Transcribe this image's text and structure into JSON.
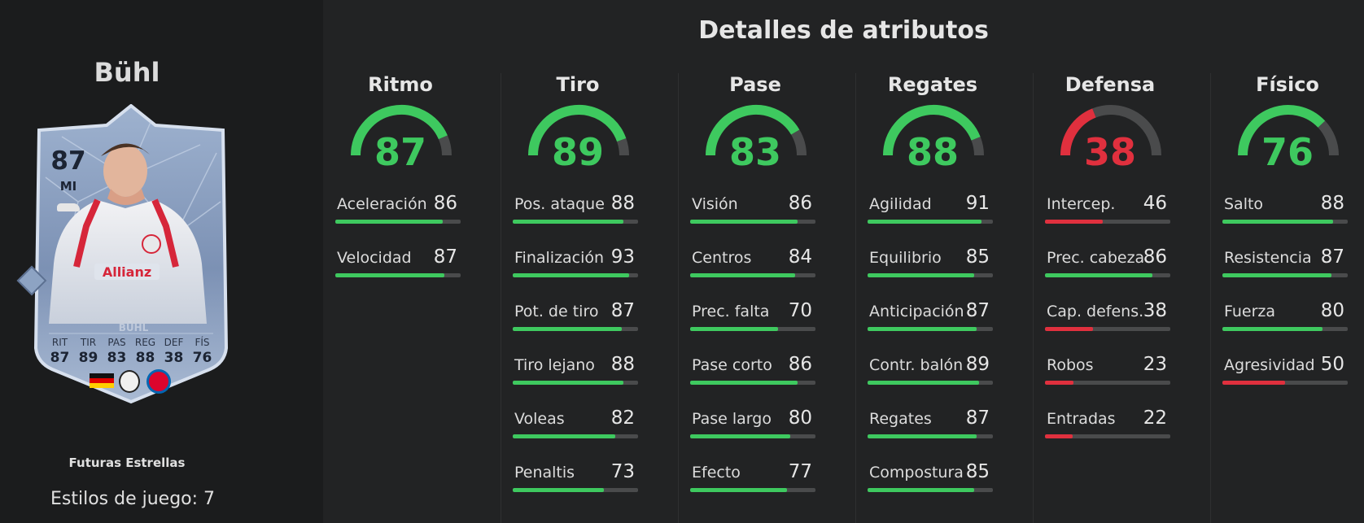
{
  "player": {
    "name": "Bühl",
    "card": {
      "rating": "87",
      "position": "MI",
      "name_on_card": "BÜHL",
      "stat_labels": [
        "RIT",
        "TIR",
        "PAS",
        "REG",
        "DEF",
        "FÍS"
      ],
      "stat_values": [
        "87",
        "89",
        "83",
        "88",
        "38",
        "76"
      ]
    },
    "edition": "Futuras Estrellas",
    "playstyles": "Estilos de juego: 7"
  },
  "title": "Detalles de atributos",
  "colors": {
    "high": "#3ec95f",
    "medium": "#e3b23c",
    "low": "#e0303e",
    "track": "#4a4b4c"
  },
  "categories": [
    {
      "name": "Ritmo",
      "value": 87,
      "stats": [
        {
          "label": "Aceleración",
          "value": 86
        },
        {
          "label": "Velocidad",
          "value": 87
        }
      ]
    },
    {
      "name": "Tiro",
      "value": 89,
      "stats": [
        {
          "label": "Pos. ataque",
          "value": 88
        },
        {
          "label": "Finalización",
          "value": 93
        },
        {
          "label": "Pot. de tiro",
          "value": 87
        },
        {
          "label": "Tiro lejano",
          "value": 88
        },
        {
          "label": "Voleas",
          "value": 82
        },
        {
          "label": "Penaltis",
          "value": 73
        }
      ]
    },
    {
      "name": "Pase",
      "value": 83,
      "stats": [
        {
          "label": "Visión",
          "value": 86
        },
        {
          "label": "Centros",
          "value": 84
        },
        {
          "label": "Prec. falta",
          "value": 70
        },
        {
          "label": "Pase corto",
          "value": 86
        },
        {
          "label": "Pase largo",
          "value": 80
        },
        {
          "label": "Efecto",
          "value": 77
        }
      ]
    },
    {
      "name": "Regates",
      "value": 88,
      "stats": [
        {
          "label": "Agilidad",
          "value": 91
        },
        {
          "label": "Equilibrio",
          "value": 85
        },
        {
          "label": "Anticipación",
          "value": 87
        },
        {
          "label": "Contr. balón",
          "value": 89
        },
        {
          "label": "Regates",
          "value": 87
        },
        {
          "label": "Compostura",
          "value": 85
        }
      ]
    },
    {
      "name": "Defensa",
      "value": 38,
      "stats": [
        {
          "label": "Intercep.",
          "value": 46
        },
        {
          "label": "Prec. cabeza",
          "value": 86
        },
        {
          "label": "Cap. defens.",
          "value": 38
        },
        {
          "label": "Robos",
          "value": 23
        },
        {
          "label": "Entradas",
          "value": 22
        }
      ]
    },
    {
      "name": "Físico",
      "value": 76,
      "stats": [
        {
          "label": "Salto",
          "value": 88
        },
        {
          "label": "Resistencia",
          "value": 87
        },
        {
          "label": "Fuerza",
          "value": 80
        },
        {
          "label": "Agresividad",
          "value": 50
        }
      ]
    }
  ]
}
